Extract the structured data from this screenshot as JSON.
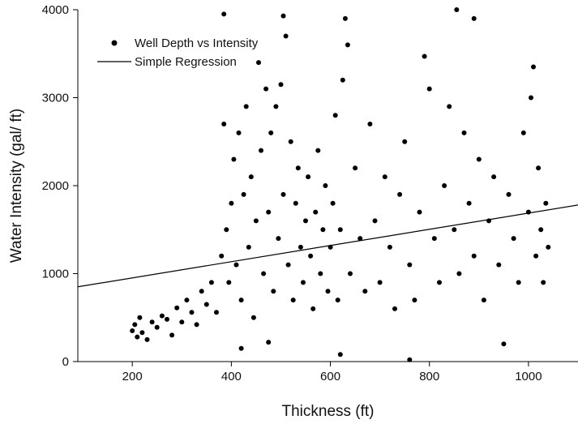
{
  "chart_data": {
    "type": "scatter",
    "xlabel": "Thickness (ft)",
    "ylabel": "Water Intensity (gal/ ft)",
    "xlim": [
      90,
      1100
    ],
    "ylim": [
      0,
      4000
    ],
    "x_ticks": [
      200,
      400,
      600,
      800,
      1000
    ],
    "y_ticks": [
      0,
      1000,
      2000,
      3000,
      4000
    ],
    "grid": false,
    "legend_position": "top-left",
    "series": [
      {
        "name": "Well Depth vs Intensity",
        "kind": "scatter",
        "color": "#000000",
        "points": [
          [
            200,
            350
          ],
          [
            205,
            420
          ],
          [
            210,
            280
          ],
          [
            215,
            500
          ],
          [
            220,
            330
          ],
          [
            230,
            250
          ],
          [
            240,
            450
          ],
          [
            250,
            390
          ],
          [
            260,
            520
          ],
          [
            270,
            480
          ],
          [
            280,
            300
          ],
          [
            290,
            610
          ],
          [
            300,
            450
          ],
          [
            310,
            700
          ],
          [
            320,
            560
          ],
          [
            330,
            420
          ],
          [
            340,
            800
          ],
          [
            350,
            650
          ],
          [
            360,
            900
          ],
          [
            370,
            560
          ],
          [
            380,
            1200
          ],
          [
            385,
            2700
          ],
          [
            390,
            1500
          ],
          [
            395,
            900
          ],
          [
            400,
            1800
          ],
          [
            405,
            2300
          ],
          [
            410,
            1100
          ],
          [
            415,
            2600
          ],
          [
            420,
            700
          ],
          [
            425,
            1900
          ],
          [
            430,
            2900
          ],
          [
            435,
            1300
          ],
          [
            440,
            2100
          ],
          [
            445,
            500
          ],
          [
            450,
            1600
          ],
          [
            455,
            3400
          ],
          [
            460,
            2400
          ],
          [
            465,
            1000
          ],
          [
            470,
            3100
          ],
          [
            475,
            1700
          ],
          [
            480,
            2600
          ],
          [
            485,
            800
          ],
          [
            490,
            2900
          ],
          [
            495,
            1400
          ],
          [
            500,
            3150
          ],
          [
            505,
            1900
          ],
          [
            510,
            3700
          ],
          [
            515,
            1100
          ],
          [
            520,
            2500
          ],
          [
            525,
            700
          ],
          [
            530,
            1800
          ],
          [
            535,
            2200
          ],
          [
            540,
            1300
          ],
          [
            545,
            900
          ],
          [
            550,
            1600
          ],
          [
            555,
            2100
          ],
          [
            560,
            1200
          ],
          [
            565,
            600
          ],
          [
            570,
            1700
          ],
          [
            575,
            2400
          ],
          [
            580,
            1000
          ],
          [
            585,
            1500
          ],
          [
            590,
            2000
          ],
          [
            595,
            800
          ],
          [
            600,
            1300
          ],
          [
            605,
            1800
          ],
          [
            610,
            2800
          ],
          [
            615,
            700
          ],
          [
            620,
            1500
          ],
          [
            625,
            3200
          ],
          [
            630,
            3900
          ],
          [
            635,
            3600
          ],
          [
            640,
            1000
          ],
          [
            650,
            2200
          ],
          [
            660,
            1400
          ],
          [
            670,
            800
          ],
          [
            680,
            2700
          ],
          [
            690,
            1600
          ],
          [
            700,
            900
          ],
          [
            710,
            2100
          ],
          [
            720,
            1300
          ],
          [
            730,
            600
          ],
          [
            740,
            1900
          ],
          [
            750,
            2500
          ],
          [
            760,
            1100
          ],
          [
            770,
            700
          ],
          [
            780,
            1700
          ],
          [
            790,
            3470
          ],
          [
            800,
            3100
          ],
          [
            810,
            1400
          ],
          [
            820,
            900
          ],
          [
            830,
            2000
          ],
          [
            840,
            2900
          ],
          [
            850,
            1500
          ],
          [
            860,
            1000
          ],
          [
            870,
            2600
          ],
          [
            880,
            1800
          ],
          [
            890,
            1200
          ],
          [
            900,
            2300
          ],
          [
            910,
            700
          ],
          [
            920,
            1600
          ],
          [
            930,
            2100
          ],
          [
            940,
            1100
          ],
          [
            950,
            200
          ],
          [
            960,
            1900
          ],
          [
            970,
            1400
          ],
          [
            980,
            900
          ],
          [
            990,
            2600
          ],
          [
            1000,
            1700
          ],
          [
            1005,
            3000
          ],
          [
            1010,
            3350
          ],
          [
            1015,
            1200
          ],
          [
            1020,
            2200
          ],
          [
            1025,
            1500
          ],
          [
            1030,
            900
          ],
          [
            1035,
            1800
          ],
          [
            1040,
            1300
          ],
          [
            385,
            3950
          ],
          [
            505,
            3930
          ],
          [
            855,
            4000
          ],
          [
            890,
            3900
          ],
          [
            475,
            220
          ],
          [
            620,
            80
          ],
          [
            760,
            20
          ],
          [
            420,
            150
          ]
        ]
      },
      {
        "name": "Simple Regression",
        "kind": "line",
        "color": "#000000",
        "points": [
          [
            90,
            850
          ],
          [
            1100,
            1780
          ]
        ]
      }
    ]
  }
}
